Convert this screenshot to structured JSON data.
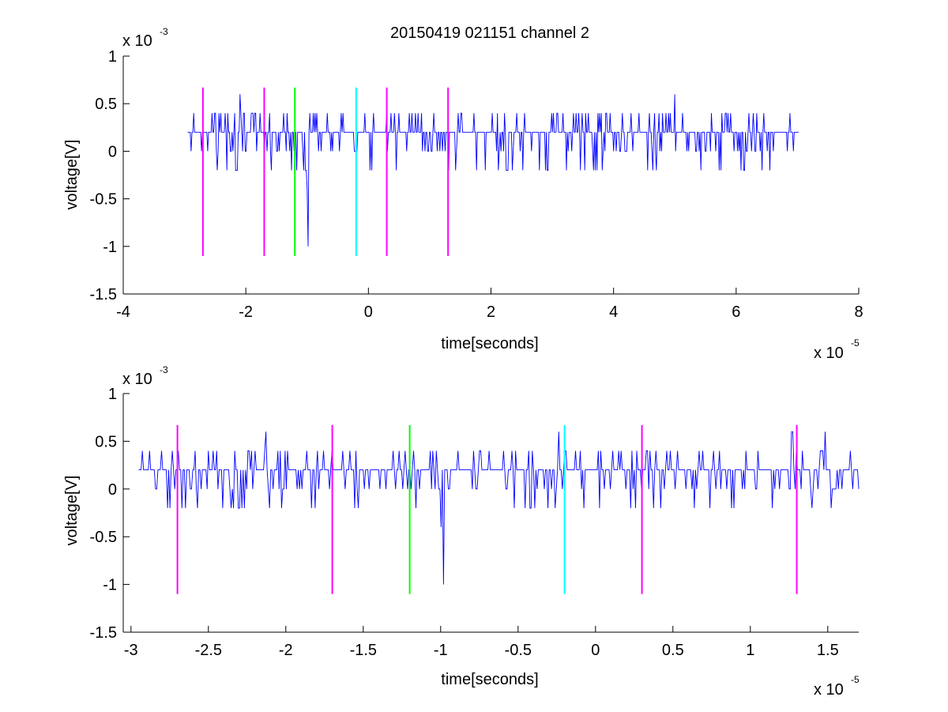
{
  "title": "20150419 021151 channel 2",
  "chart_data": [
    {
      "type": "line",
      "xlabel": "time[seconds]",
      "ylabel": "voltage[V]",
      "x_exponent_label": "x 10",
      "x_exponent": "-5",
      "y_exponent_label": "x 10",
      "y_exponent": "-3",
      "xlim": [
        -4,
        8
      ],
      "ylim": [
        -1.5,
        1
      ],
      "xticks": [
        -4,
        -2,
        0,
        2,
        4,
        6,
        8
      ],
      "xtick_labels": [
        "-4",
        "-2",
        "0",
        "2",
        "4",
        "6",
        "8"
      ],
      "yticks": [
        -1.5,
        -1,
        -0.5,
        0,
        0.5,
        1
      ],
      "ytick_labels": [
        "-1.5",
        "-1",
        "-0.5",
        "0",
        "0.5",
        "1"
      ],
      "signal": {
        "color": "#0000ff",
        "x_start": -2.95,
        "x_end": 7.02,
        "baseline": 0.2,
        "step": 0.2,
        "dips": [
          {
            "x": -0.98,
            "y": -1.0
          },
          {
            "x": -1.0,
            "y": -0.4
          }
        ],
        "peaks": [
          {
            "x": -2.1,
            "y": 0.6
          },
          {
            "x": 5.0,
            "y": 0.6
          }
        ]
      },
      "markers": [
        {
          "x": -2.7,
          "color": "#ff00ff"
        },
        {
          "x": -1.7,
          "color": "#ff00ff"
        },
        {
          "x": -1.2,
          "color": "#00ff00"
        },
        {
          "x": -0.2,
          "color": "#00ffff"
        },
        {
          "x": 0.3,
          "color": "#ff00ff"
        },
        {
          "x": 1.3,
          "color": "#ff00ff"
        }
      ],
      "marker_range": [
        -1.1,
        0.67
      ]
    },
    {
      "type": "line",
      "xlabel": "time[seconds]",
      "ylabel": "voltage[V]",
      "x_exponent_label": "x 10",
      "x_exponent": "-5",
      "y_exponent_label": "x 10",
      "y_exponent": "-3",
      "xlim": [
        -3.05,
        1.7
      ],
      "ylim": [
        -1.5,
        1
      ],
      "xticks": [
        -3,
        -2.5,
        -2,
        -1.5,
        -1,
        -0.5,
        0,
        0.5,
        1,
        1.5
      ],
      "xtick_labels": [
        "-3",
        "-2.5",
        "-2",
        "-1.5",
        "-1",
        "-0.5",
        "0",
        "0.5",
        "1",
        "1.5"
      ],
      "yticks": [
        -1.5,
        -1,
        -0.5,
        0,
        0.5,
        1
      ],
      "ytick_labels": [
        "-1.5",
        "-1",
        "-0.5",
        "0",
        "0.5",
        "1"
      ],
      "signal": {
        "color": "#0000ff",
        "x_start": -2.95,
        "x_end": 1.7,
        "baseline": 0.2,
        "step": 0.2,
        "dips": [
          {
            "x": -0.98,
            "y": -1.0
          },
          {
            "x": -1.0,
            "y": -0.4
          }
        ],
        "peaks": [
          {
            "x": -2.13,
            "y": 0.6
          },
          {
            "x": -0.24,
            "y": 0.6
          },
          {
            "x": 1.27,
            "y": 0.6
          },
          {
            "x": 1.48,
            "y": 0.6
          }
        ]
      },
      "markers": [
        {
          "x": -2.7,
          "color": "#ff00ff"
        },
        {
          "x": -1.7,
          "color": "#ff00ff"
        },
        {
          "x": -1.2,
          "color": "#00ff00"
        },
        {
          "x": -0.2,
          "color": "#00ffff"
        },
        {
          "x": 0.3,
          "color": "#ff00ff"
        },
        {
          "x": 1.3,
          "color": "#ff00ff"
        }
      ],
      "marker_range": [
        -1.1,
        0.67
      ]
    }
  ]
}
